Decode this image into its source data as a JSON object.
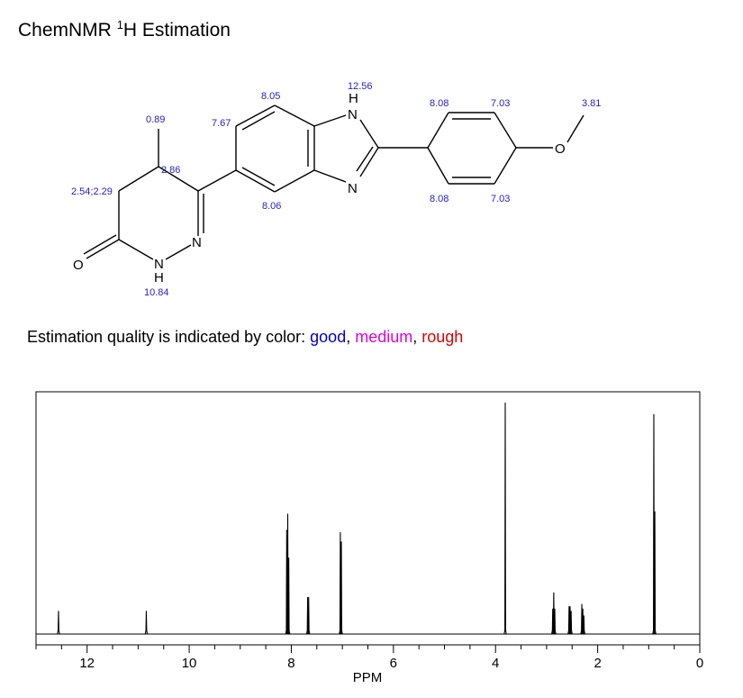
{
  "title": {
    "prefix": "ChemNMR ",
    "sup": "1",
    "suffix": "H Estimation"
  },
  "quality": {
    "text": "Estimation quality is indicated by color: ",
    "good": "good",
    "sep1": ", ",
    "medium": "medium",
    "sep2": ", ",
    "rough": "rough",
    "colors": {
      "good": "#0000cc",
      "medium": "#e000e0",
      "rough": "#e00000"
    }
  },
  "molecule": {
    "atoms": {
      "nh_top": "H",
      "n_top": "N",
      "n_bottom": "N",
      "o_methoxy": "O",
      "n_ring": "N",
      "nh_ring": "N",
      "h_ring": "H",
      "o_carbonyl": "O"
    },
    "shifts": {
      "methyl": "0.89",
      "ch": "2.86",
      "ch2": "2.54;2.29",
      "nh_ring": "10.84",
      "ar_767": "7.67",
      "ar_805": "8.05",
      "ar_806": "8.06",
      "nh_benz": "12.56",
      "ph_808_top": "8.08",
      "ph_703_top": "7.03",
      "ph_808_bottom": "8.08",
      "ph_703_bottom": "7.03",
      "ome": "3.81"
    }
  },
  "chart_data": {
    "type": "line",
    "title": "",
    "xlabel": "PPM",
    "ylabel": "",
    "xlim": [
      13,
      0
    ],
    "x_reversed": true,
    "xticks": [
      12,
      10,
      8,
      6,
      4,
      2,
      0
    ],
    "grid": false,
    "peaks": [
      {
        "ppm": 12.56,
        "height": 0.1
      },
      {
        "ppm": 10.84,
        "height": 0.1
      },
      {
        "ppm": 8.09,
        "height": 0.45
      },
      {
        "ppm": 8.07,
        "height": 0.52
      },
      {
        "ppm": 8.05,
        "height": 0.33
      },
      {
        "ppm": 7.68,
        "height": 0.16
      },
      {
        "ppm": 7.66,
        "height": 0.16
      },
      {
        "ppm": 7.04,
        "height": 0.44
      },
      {
        "ppm": 7.02,
        "height": 0.4
      },
      {
        "ppm": 3.81,
        "height": 1.0
      },
      {
        "ppm": 2.88,
        "height": 0.11
      },
      {
        "ppm": 2.86,
        "height": 0.18
      },
      {
        "ppm": 2.84,
        "height": 0.11
      },
      {
        "ppm": 2.56,
        "height": 0.12
      },
      {
        "ppm": 2.54,
        "height": 0.12
      },
      {
        "ppm": 2.52,
        "height": 0.1
      },
      {
        "ppm": 2.31,
        "height": 0.13
      },
      {
        "ppm": 2.29,
        "height": 0.11
      },
      {
        "ppm": 2.27,
        "height": 0.08
      },
      {
        "ppm": 0.9,
        "height": 0.95
      },
      {
        "ppm": 0.88,
        "height": 0.53
      }
    ]
  }
}
